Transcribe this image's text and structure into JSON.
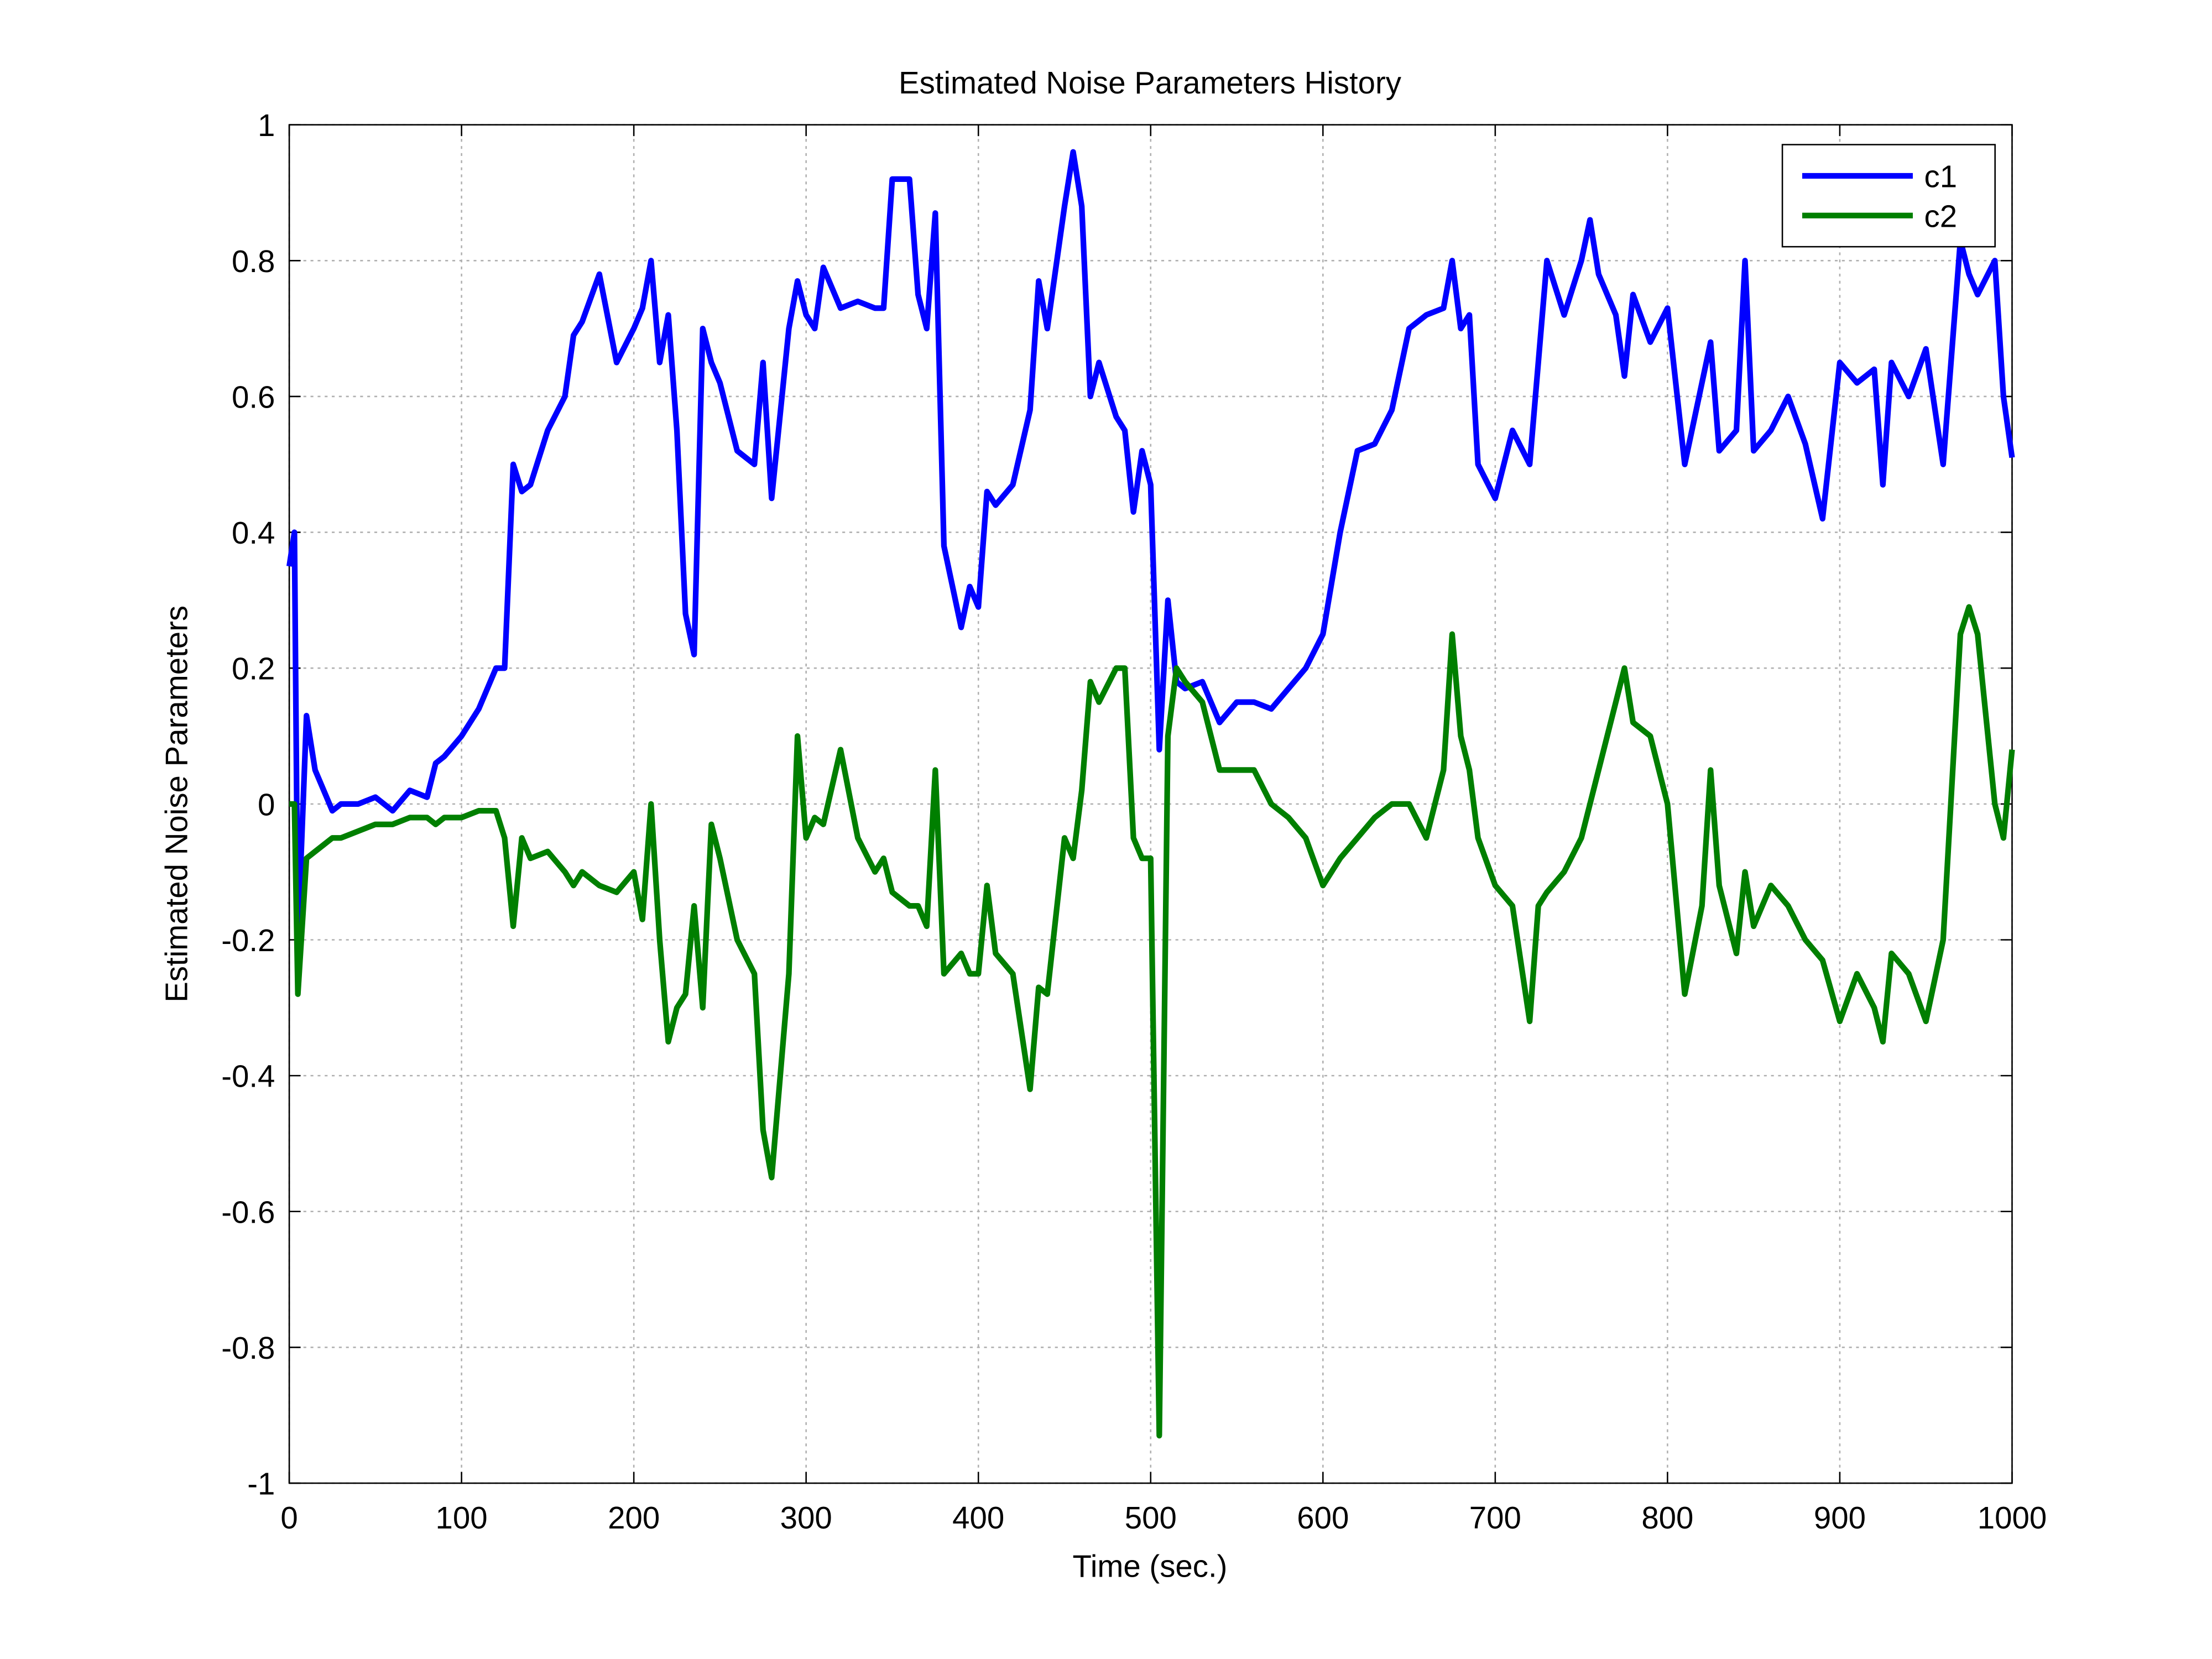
{
  "chart_data": {
    "type": "line",
    "title": "Estimated Noise Parameters History",
    "x_label": "Time (sec.)",
    "y_label": "Estimated Noise Parameters",
    "x": [
      0,
      3,
      5,
      10,
      15,
      20,
      25,
      30,
      40,
      50,
      60,
      70,
      80,
      85,
      90,
      100,
      110,
      120,
      125,
      130,
      135,
      140,
      150,
      160,
      165,
      170,
      180,
      190,
      200,
      205,
      210,
      215,
      220,
      225,
      230,
      235,
      240,
      245,
      250,
      260,
      270,
      275,
      280,
      290,
      295,
      300,
      305,
      310,
      320,
      330,
      340,
      345,
      350,
      360,
      365,
      370,
      375,
      380,
      390,
      395,
      400,
      405,
      410,
      420,
      430,
      435,
      440,
      450,
      455,
      460,
      465,
      470,
      480,
      485,
      490,
      495,
      500,
      505,
      510,
      515,
      520,
      530,
      540,
      550,
      560,
      570,
      580,
      590,
      600,
      610,
      620,
      630,
      640,
      650,
      660,
      670,
      675,
      680,
      685,
      690,
      700,
      710,
      720,
      725,
      730,
      740,
      750,
      755,
      760,
      770,
      775,
      780,
      790,
      800,
      810,
      820,
      825,
      830,
      840,
      845,
      850,
      860,
      870,
      880,
      890,
      900,
      910,
      920,
      925,
      930,
      940,
      950,
      960,
      970,
      975,
      980,
      990,
      995,
      1000
    ],
    "series": [
      {
        "name": "c1",
        "color": "#0000ff",
        "values": [
          0.35,
          0.4,
          -0.2,
          0.13,
          0.05,
          0.02,
          -0.01,
          0,
          0,
          0.01,
          -0.01,
          0.02,
          0.01,
          0.06,
          0.07,
          0.1,
          0.14,
          0.2,
          0.2,
          0.5,
          0.46,
          0.47,
          0.55,
          0.6,
          0.69,
          0.71,
          0.78,
          0.65,
          0.7,
          0.73,
          0.8,
          0.65,
          0.72,
          0.55,
          0.28,
          0.22,
          0.7,
          0.65,
          0.62,
          0.52,
          0.5,
          0.65,
          0.45,
          0.7,
          0.77,
          0.72,
          0.7,
          0.79,
          0.73,
          0.74,
          0.73,
          0.73,
          0.92,
          0.92,
          0.75,
          0.7,
          0.87,
          0.38,
          0.26,
          0.32,
          0.29,
          0.46,
          0.44,
          0.47,
          0.58,
          0.77,
          0.7,
          0.88,
          0.96,
          0.88,
          0.6,
          0.65,
          0.57,
          0.55,
          0.43,
          0.52,
          0.47,
          0.08,
          0.3,
          0.18,
          0.17,
          0.18,
          0.12,
          0.15,
          0.15,
          0.14,
          0.17,
          0.2,
          0.25,
          0.4,
          0.52,
          0.53,
          0.58,
          0.7,
          0.72,
          0.73,
          0.8,
          0.7,
          0.72,
          0.5,
          0.45,
          0.55,
          0.5,
          0.65,
          0.8,
          0.72,
          0.8,
          0.86,
          0.78,
          0.72,
          0.63,
          0.75,
          0.68,
          0.73,
          0.5,
          0.62,
          0.68,
          0.52,
          0.55,
          0.8,
          0.52,
          0.55,
          0.6,
          0.53,
          0.42,
          0.65,
          0.62,
          0.64,
          0.47,
          0.65,
          0.6,
          0.67,
          0.5,
          0.83,
          0.78,
          0.75,
          0.8,
          0.6,
          0.51
        ]
      },
      {
        "name": "c2",
        "color": "#007f00",
        "values": [
          0,
          0,
          -0.28,
          -0.08,
          -0.07,
          -0.06,
          -0.05,
          -0.05,
          -0.04,
          -0.03,
          -0.03,
          -0.02,
          -0.02,
          -0.03,
          -0.02,
          -0.02,
          -0.01,
          -0.01,
          -0.05,
          -0.18,
          -0.05,
          -0.08,
          -0.07,
          -0.1,
          -0.12,
          -0.1,
          -0.12,
          -0.13,
          -0.1,
          -0.17,
          0,
          -0.2,
          -0.35,
          -0.3,
          -0.28,
          -0.15,
          -0.3,
          -0.03,
          -0.08,
          -0.2,
          -0.25,
          -0.48,
          -0.55,
          -0.25,
          0.1,
          -0.05,
          -0.02,
          -0.03,
          0.08,
          -0.05,
          -0.1,
          -0.08,
          -0.13,
          -0.15,
          -0.15,
          -0.18,
          0.05,
          -0.25,
          -0.22,
          -0.25,
          -0.25,
          -0.12,
          -0.22,
          -0.25,
          -0.42,
          -0.27,
          -0.28,
          -0.05,
          -0.08,
          0.02,
          0.18,
          0.15,
          0.2,
          0.2,
          -0.05,
          -0.08,
          -0.08,
          -0.93,
          0.1,
          0.2,
          0.18,
          0.15,
          0.05,
          0.05,
          0.05,
          0,
          -0.02,
          -0.05,
          -0.12,
          -0.08,
          -0.05,
          -0.02,
          0,
          0,
          -0.05,
          0.05,
          0.25,
          0.1,
          0.05,
          -0.05,
          -0.12,
          -0.15,
          -0.32,
          -0.15,
          -0.13,
          -0.1,
          -0.05,
          0,
          0.05,
          0.15,
          0.2,
          0.12,
          0.1,
          0,
          -0.28,
          -0.15,
          0.05,
          -0.12,
          -0.22,
          -0.1,
          -0.18,
          -0.12,
          -0.15,
          -0.2,
          -0.23,
          -0.32,
          -0.25,
          -0.3,
          -0.35,
          -0.22,
          -0.25,
          -0.32,
          -0.2,
          0.25,
          0.29,
          0.25,
          0,
          -0.05,
          0.08
        ]
      }
    ],
    "xlim": [
      0,
      1000
    ],
    "ylim": [
      -1,
      1
    ],
    "xticks": [
      0,
      100,
      200,
      300,
      400,
      500,
      600,
      700,
      800,
      900,
      1000
    ],
    "yticks": [
      -1,
      -0.8,
      -0.6,
      -0.4,
      -0.2,
      0,
      0.2,
      0.4,
      0.6,
      0.8,
      1
    ],
    "grid": true,
    "legend": "top-right"
  }
}
